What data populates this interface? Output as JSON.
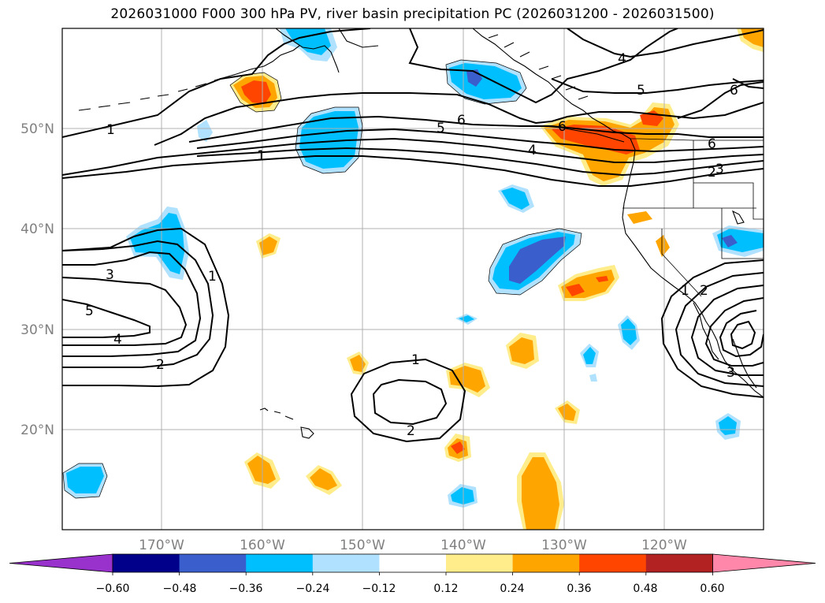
{
  "title": "2026031000 F000 300 hPa PV, river basin precipitation PC (2026031200 - 2026031500)",
  "map": {
    "lat_labels": [
      "50°N",
      "40°N",
      "30°N",
      "20°N"
    ],
    "lon_labels": [
      "170°W",
      "160°W",
      "150°W",
      "140°W",
      "130°W",
      "120°W"
    ],
    "contour_labels": [
      "1",
      "1",
      "1",
      "1",
      "1",
      "2",
      "2",
      "2",
      "2",
      "3",
      "3",
      "3",
      "4",
      "4",
      "4",
      "5",
      "5",
      "5",
      "6",
      "6",
      "6",
      "6"
    ]
  },
  "colorbar": {
    "ticks": [
      "−0.60",
      "−0.48",
      "−0.36",
      "−0.24",
      "−0.12",
      "0.12",
      "0.24",
      "0.36",
      "0.48",
      "0.60"
    ],
    "colors": [
      "#9932cc",
      "#00008b",
      "#3a5fcd",
      "#00bfff",
      "#b0e2ff",
      "#ffffff",
      "#ffec8b",
      "#ffa500",
      "#ff4500",
      "#b22222",
      "#ff88aa"
    ]
  },
  "colors": {
    "blue_light": "#b0e2ff",
    "blue": "#00bfff",
    "blue_dark": "#3a5fcd",
    "navy": "#00008b",
    "yellow": "#ffec8b",
    "orange": "#ffa500",
    "red_orange": "#ff4500",
    "grid": "#b0b0b0",
    "axis_label": "#808080"
  }
}
